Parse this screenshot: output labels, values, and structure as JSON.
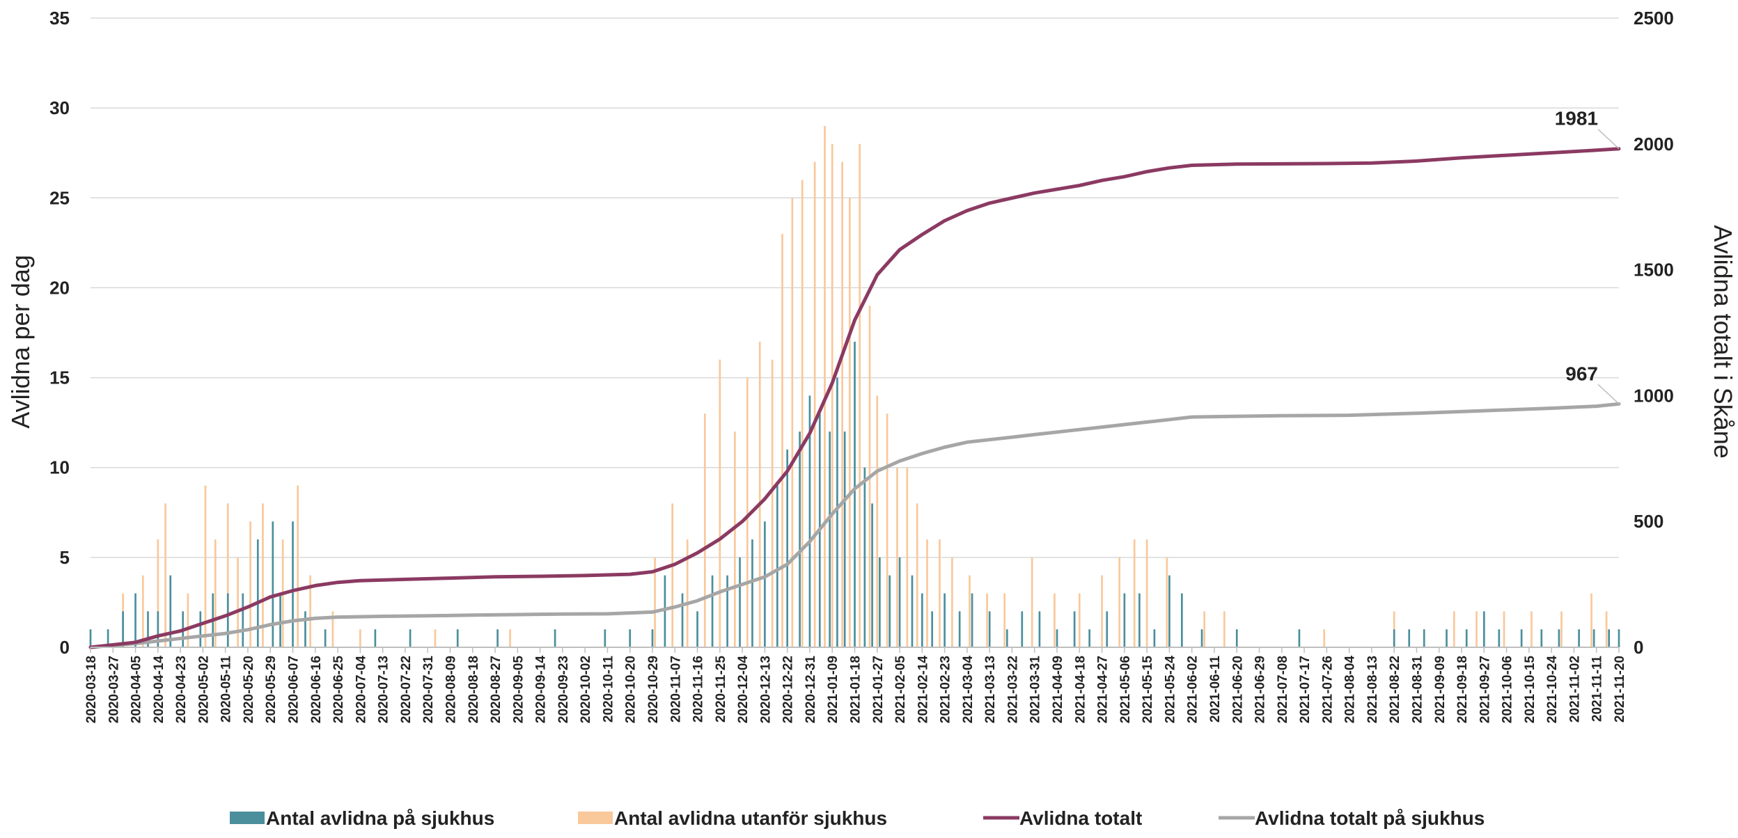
{
  "chart_data": {
    "type": "bar+line",
    "start_date": "2020-03-18",
    "end_date": "2021-11-20",
    "ylabel_left": "Avlidna per dag",
    "ylabel_right": "Avlidna totalt i Skåne",
    "ylim_left": [
      0,
      35
    ],
    "ylim_right": [
      0,
      2500
    ],
    "yticks_left": [
      "0",
      "5",
      "10",
      "15",
      "20",
      "25",
      "30",
      "35"
    ],
    "yticks_right": [
      "0",
      "500",
      "1000",
      "1500",
      "2000",
      "2500"
    ],
    "grid": true,
    "legend_position": "bottom",
    "colors": {
      "hospital": "#4b8f9c",
      "outside": "#f9c89b",
      "total": "#8b3a62",
      "hospital_total": "#a6a6a6",
      "grid": "#d9d9d9",
      "text": "#222222"
    },
    "xtick_labels": [
      "2020-03-18",
      "2020-03-27",
      "2020-04-05",
      "2020-04-14",
      "2020-04-23",
      "2020-05-02",
      "2020-05-11",
      "2020-05-20",
      "2020-05-29",
      "2020-06-07",
      "2020-06-16",
      "2020-06-25",
      "2020-07-04",
      "2020-07-13",
      "2020-07-22",
      "2020-07-31",
      "2020-08-09",
      "2020-08-18",
      "2020-08-27",
      "2020-09-05",
      "2020-09-14",
      "2020-09-23",
      "2020-10-02",
      "2020-10-11",
      "2020-10-20",
      "2020-10-29",
      "2020-11-07",
      "2020-11-16",
      "2020-11-25",
      "2020-12-04",
      "2020-12-13",
      "2020-12-22",
      "2020-12-31",
      "2021-01-09",
      "2021-01-18",
      "2021-01-27",
      "2021-02-05",
      "2021-02-14",
      "2021-02-23",
      "2021-03-04",
      "2021-03-13",
      "2021-03-22",
      "2021-03-31",
      "2021-04-09",
      "2021-04-18",
      "2021-04-27",
      "2021-05-06",
      "2021-05-15",
      "2021-05-24",
      "2021-06-02",
      "2021-06-11",
      "2021-06-20",
      "2021-06-29",
      "2021-07-08",
      "2021-07-17",
      "2021-07-26",
      "2021-08-04",
      "2021-08-13",
      "2021-08-22",
      "2021-08-31",
      "2021-09-09",
      "2021-09-18",
      "2021-09-27",
      "2021-10-06",
      "2021-10-15",
      "2021-10-24",
      "2021-11-02",
      "2021-11-11",
      "2021-11-20"
    ],
    "series": [
      {
        "name": "Antal avlidna på sjukhus",
        "type": "bar",
        "axis": "left",
        "points": [
          [
            "2020-03-18",
            1
          ],
          [
            "2020-03-25",
            1
          ],
          [
            "2020-03-31",
            2
          ],
          [
            "2020-04-05",
            3
          ],
          [
            "2020-04-10",
            2
          ],
          [
            "2020-04-14",
            2
          ],
          [
            "2020-04-19",
            4
          ],
          [
            "2020-04-24",
            2
          ],
          [
            "2020-05-01",
            2
          ],
          [
            "2020-05-06",
            3
          ],
          [
            "2020-05-12",
            3
          ],
          [
            "2020-05-18",
            3
          ],
          [
            "2020-05-24",
            6
          ],
          [
            "2020-05-30",
            7
          ],
          [
            "2020-06-02",
            3
          ],
          [
            "2020-06-07",
            7
          ],
          [
            "2020-06-12",
            2
          ],
          [
            "2020-06-20",
            1
          ],
          [
            "2020-07-10",
            1
          ],
          [
            "2020-07-24",
            1
          ],
          [
            "2020-08-12",
            1
          ],
          [
            "2020-08-28",
            1
          ],
          [
            "2020-09-20",
            1
          ],
          [
            "2020-10-10",
            1
          ],
          [
            "2020-10-20",
            1
          ],
          [
            "2020-10-29",
            1
          ],
          [
            "2020-11-03",
            4
          ],
          [
            "2020-11-10",
            3
          ],
          [
            "2020-11-16",
            2
          ],
          [
            "2020-11-22",
            4
          ],
          [
            "2020-11-28",
            4
          ],
          [
            "2020-12-03",
            5
          ],
          [
            "2020-12-08",
            6
          ],
          [
            "2020-12-13",
            7
          ],
          [
            "2020-12-18",
            9
          ],
          [
            "2020-12-22",
            11
          ],
          [
            "2020-12-27",
            12
          ],
          [
            "2020-12-31",
            14
          ],
          [
            "2021-01-04",
            13
          ],
          [
            "2021-01-08",
            12
          ],
          [
            "2021-01-11",
            15
          ],
          [
            "2021-01-14",
            12
          ],
          [
            "2021-01-18",
            17
          ],
          [
            "2021-01-22",
            10
          ],
          [
            "2021-01-25",
            8
          ],
          [
            "2021-01-28",
            5
          ],
          [
            "2021-02-01",
            4
          ],
          [
            "2021-02-05",
            5
          ],
          [
            "2021-02-10",
            4
          ],
          [
            "2021-02-14",
            3
          ],
          [
            "2021-02-18",
            2
          ],
          [
            "2021-02-23",
            3
          ],
          [
            "2021-03-01",
            2
          ],
          [
            "2021-03-06",
            3
          ],
          [
            "2021-03-13",
            2
          ],
          [
            "2021-03-20",
            1
          ],
          [
            "2021-03-26",
            2
          ],
          [
            "2021-04-02",
            2
          ],
          [
            "2021-04-09",
            1
          ],
          [
            "2021-04-16",
            2
          ],
          [
            "2021-04-22",
            1
          ],
          [
            "2021-04-29",
            2
          ],
          [
            "2021-05-06",
            3
          ],
          [
            "2021-05-12",
            3
          ],
          [
            "2021-05-18",
            1
          ],
          [
            "2021-05-24",
            4
          ],
          [
            "2021-05-29",
            3
          ],
          [
            "2021-06-06",
            1
          ],
          [
            "2021-06-20",
            1
          ],
          [
            "2021-07-15",
            1
          ],
          [
            "2021-08-22",
            1
          ],
          [
            "2021-08-28",
            1
          ],
          [
            "2021-09-03",
            1
          ],
          [
            "2021-09-12",
            1
          ],
          [
            "2021-09-20",
            1
          ],
          [
            "2021-09-27",
            2
          ],
          [
            "2021-10-03",
            1
          ],
          [
            "2021-10-12",
            1
          ],
          [
            "2021-10-20",
            1
          ],
          [
            "2021-10-27",
            1
          ],
          [
            "2021-11-04",
            1
          ],
          [
            "2021-11-10",
            1
          ],
          [
            "2021-11-16",
            1
          ],
          [
            "2021-11-20",
            1
          ]
        ]
      },
      {
        "name": "Antal avlidna utanför sjukhus",
        "type": "bar",
        "axis": "left",
        "points": [
          [
            "2020-03-31",
            3
          ],
          [
            "2020-04-08",
            4
          ],
          [
            "2020-04-14",
            6
          ],
          [
            "2020-04-17",
            8
          ],
          [
            "2020-04-26",
            3
          ],
          [
            "2020-05-03",
            9
          ],
          [
            "2020-05-07",
            6
          ],
          [
            "2020-05-12",
            8
          ],
          [
            "2020-05-16",
            5
          ],
          [
            "2020-05-21",
            7
          ],
          [
            "2020-05-26",
            8
          ],
          [
            "2020-06-03",
            6
          ],
          [
            "2020-06-09",
            9
          ],
          [
            "2020-06-14",
            4
          ],
          [
            "2020-06-23",
            2
          ],
          [
            "2020-07-04",
            1
          ],
          [
            "2020-08-03",
            1
          ],
          [
            "2020-09-02",
            1
          ],
          [
            "2020-10-30",
            5
          ],
          [
            "2020-11-06",
            8
          ],
          [
            "2020-11-12",
            6
          ],
          [
            "2020-11-19",
            13
          ],
          [
            "2020-11-25",
            16
          ],
          [
            "2020-12-01",
            12
          ],
          [
            "2020-12-06",
            15
          ],
          [
            "2020-12-11",
            17
          ],
          [
            "2020-12-16",
            16
          ],
          [
            "2020-12-20",
            23
          ],
          [
            "2020-12-24",
            25
          ],
          [
            "2020-12-28",
            26
          ],
          [
            "2021-01-02",
            27
          ],
          [
            "2021-01-06",
            29
          ],
          [
            "2021-01-09",
            28
          ],
          [
            "2021-01-13",
            27
          ],
          [
            "2021-01-16",
            25
          ],
          [
            "2021-01-20",
            28
          ],
          [
            "2021-01-24",
            19
          ],
          [
            "2021-01-27",
            14
          ],
          [
            "2021-01-31",
            13
          ],
          [
            "2021-02-04",
            10
          ],
          [
            "2021-02-08",
            10
          ],
          [
            "2021-02-12",
            8
          ],
          [
            "2021-02-16",
            6
          ],
          [
            "2021-02-21",
            6
          ],
          [
            "2021-02-26",
            5
          ],
          [
            "2021-03-05",
            4
          ],
          [
            "2021-03-12",
            3
          ],
          [
            "2021-03-19",
            3
          ],
          [
            "2021-03-30",
            5
          ],
          [
            "2021-04-08",
            3
          ],
          [
            "2021-04-18",
            3
          ],
          [
            "2021-04-27",
            4
          ],
          [
            "2021-05-04",
            5
          ],
          [
            "2021-05-10",
            6
          ],
          [
            "2021-05-15",
            6
          ],
          [
            "2021-05-23",
            5
          ],
          [
            "2021-06-07",
            2
          ],
          [
            "2021-06-15",
            2
          ],
          [
            "2021-07-25",
            1
          ],
          [
            "2021-08-22",
            2
          ],
          [
            "2021-09-15",
            2
          ],
          [
            "2021-09-24",
            2
          ],
          [
            "2021-10-05",
            2
          ],
          [
            "2021-10-16",
            2
          ],
          [
            "2021-10-28",
            2
          ],
          [
            "2021-11-09",
            3
          ],
          [
            "2021-11-15",
            2
          ]
        ]
      },
      {
        "name": "Avlidna totalt",
        "type": "line",
        "axis": "right",
        "points": [
          [
            "2020-03-18",
            0
          ],
          [
            "2020-04-05",
            20
          ],
          [
            "2020-04-14",
            45
          ],
          [
            "2020-04-23",
            65
          ],
          [
            "2020-05-02",
            95
          ],
          [
            "2020-05-11",
            125
          ],
          [
            "2020-05-20",
            160
          ],
          [
            "2020-05-29",
            200
          ],
          [
            "2020-06-07",
            225
          ],
          [
            "2020-06-16",
            245
          ],
          [
            "2020-06-25",
            258
          ],
          [
            "2020-07-04",
            265
          ],
          [
            "2020-07-22",
            270
          ],
          [
            "2020-08-09",
            275
          ],
          [
            "2020-08-27",
            280
          ],
          [
            "2020-09-14",
            282
          ],
          [
            "2020-10-02",
            285
          ],
          [
            "2020-10-20",
            290
          ],
          [
            "2020-10-29",
            300
          ],
          [
            "2020-11-07",
            330
          ],
          [
            "2020-11-16",
            375
          ],
          [
            "2020-11-25",
            430
          ],
          [
            "2020-12-04",
            500
          ],
          [
            "2020-12-13",
            590
          ],
          [
            "2020-12-22",
            700
          ],
          [
            "2020-12-31",
            850
          ],
          [
            "2021-01-09",
            1050
          ],
          [
            "2021-01-18",
            1300
          ],
          [
            "2021-01-27",
            1480
          ],
          [
            "2021-02-05",
            1580
          ],
          [
            "2021-02-14",
            1640
          ],
          [
            "2021-02-23",
            1695
          ],
          [
            "2021-03-04",
            1735
          ],
          [
            "2021-03-13",
            1765
          ],
          [
            "2021-03-22",
            1785
          ],
          [
            "2021-03-31",
            1805
          ],
          [
            "2021-04-09",
            1820
          ],
          [
            "2021-04-18",
            1835
          ],
          [
            "2021-04-27",
            1855
          ],
          [
            "2021-05-06",
            1870
          ],
          [
            "2021-05-15",
            1890
          ],
          [
            "2021-05-24",
            1905
          ],
          [
            "2021-06-02",
            1915
          ],
          [
            "2021-06-20",
            1920
          ],
          [
            "2021-07-08",
            1921
          ],
          [
            "2021-07-26",
            1922
          ],
          [
            "2021-08-13",
            1924
          ],
          [
            "2021-08-31",
            1932
          ],
          [
            "2021-09-18",
            1945
          ],
          [
            "2021-10-06",
            1955
          ],
          [
            "2021-10-24",
            1965
          ],
          [
            "2021-11-11",
            1975
          ],
          [
            "2021-11-20",
            1981
          ]
        ]
      },
      {
        "name": "Avlidna totalt på sjukhus",
        "type": "line",
        "axis": "right",
        "points": [
          [
            "2020-03-18",
            0
          ],
          [
            "2020-04-05",
            15
          ],
          [
            "2020-04-14",
            25
          ],
          [
            "2020-04-23",
            35
          ],
          [
            "2020-05-02",
            45
          ],
          [
            "2020-05-11",
            55
          ],
          [
            "2020-05-20",
            70
          ],
          [
            "2020-05-29",
            90
          ],
          [
            "2020-06-07",
            105
          ],
          [
            "2020-06-16",
            115
          ],
          [
            "2020-06-25",
            120
          ],
          [
            "2020-07-13",
            123
          ],
          [
            "2020-07-31",
            125
          ],
          [
            "2020-08-18",
            128
          ],
          [
            "2020-09-05",
            130
          ],
          [
            "2020-09-23",
            132
          ],
          [
            "2020-10-11",
            133
          ],
          [
            "2020-10-29",
            140
          ],
          [
            "2020-11-07",
            160
          ],
          [
            "2020-11-16",
            185
          ],
          [
            "2020-11-25",
            220
          ],
          [
            "2020-12-04",
            250
          ],
          [
            "2020-12-13",
            280
          ],
          [
            "2020-12-22",
            330
          ],
          [
            "2020-12-31",
            420
          ],
          [
            "2021-01-09",
            530
          ],
          [
            "2021-01-18",
            630
          ],
          [
            "2021-01-27",
            700
          ],
          [
            "2021-02-05",
            740
          ],
          [
            "2021-02-14",
            770
          ],
          [
            "2021-02-23",
            795
          ],
          [
            "2021-03-04",
            815
          ],
          [
            "2021-03-13",
            825
          ],
          [
            "2021-03-22",
            835
          ],
          [
            "2021-03-31",
            845
          ],
          [
            "2021-04-09",
            855
          ],
          [
            "2021-04-18",
            865
          ],
          [
            "2021-04-27",
            875
          ],
          [
            "2021-05-06",
            885
          ],
          [
            "2021-05-15",
            895
          ],
          [
            "2021-05-24",
            905
          ],
          [
            "2021-06-02",
            915
          ],
          [
            "2021-06-20",
            918
          ],
          [
            "2021-07-08",
            920
          ],
          [
            "2021-08-04",
            922
          ],
          [
            "2021-08-31",
            930
          ],
          [
            "2021-09-27",
            940
          ],
          [
            "2021-10-24",
            950
          ],
          [
            "2021-11-11",
            958
          ],
          [
            "2021-11-20",
            967
          ]
        ]
      }
    ],
    "end_labels": [
      {
        "series": "Avlidna totalt",
        "text": "1981",
        "value": 1981
      },
      {
        "series": "Avlidna totalt på sjukhus",
        "text": "967",
        "value": 967
      }
    ]
  }
}
